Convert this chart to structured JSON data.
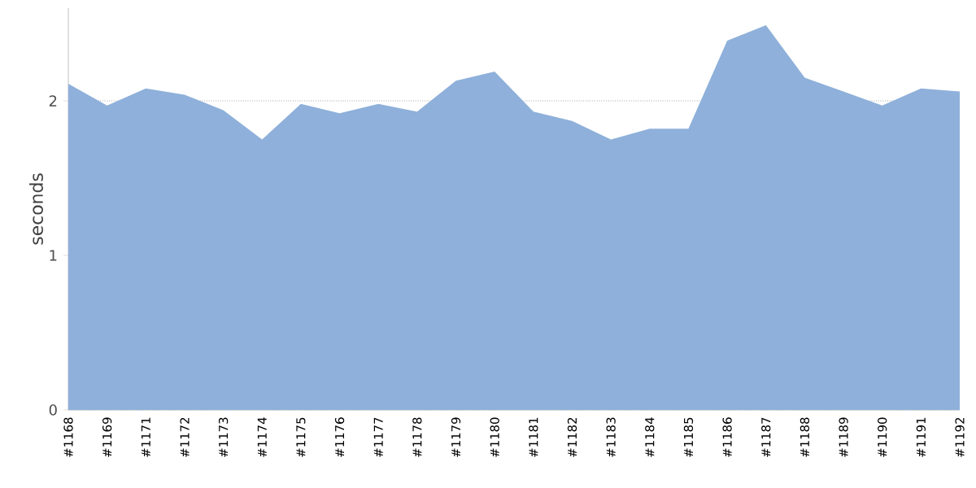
{
  "chart_data": {
    "type": "area",
    "ylabel": "seconds",
    "categories": [
      "#1168",
      "#1169",
      "#1171",
      "#1172",
      "#1173",
      "#1174",
      "#1175",
      "#1176",
      "#1177",
      "#1178",
      "#1179",
      "#1180",
      "#1181",
      "#1182",
      "#1183",
      "#1184",
      "#1185",
      "#1186",
      "#1187",
      "#1188",
      "#1189",
      "#1190",
      "#1191",
      "#1192"
    ],
    "values": [
      2.11,
      1.97,
      2.08,
      2.04,
      1.94,
      1.75,
      1.98,
      1.92,
      1.98,
      1.93,
      2.13,
      2.19,
      1.93,
      1.87,
      1.75,
      1.82,
      1.82,
      2.39,
      2.49,
      2.15,
      2.06,
      1.97,
      2.08,
      2.06
    ],
    "color": "#8eb0da",
    "ylim": [
      0,
      2.6
    ],
    "yticks": [
      0,
      1,
      2
    ],
    "grid": "y"
  }
}
